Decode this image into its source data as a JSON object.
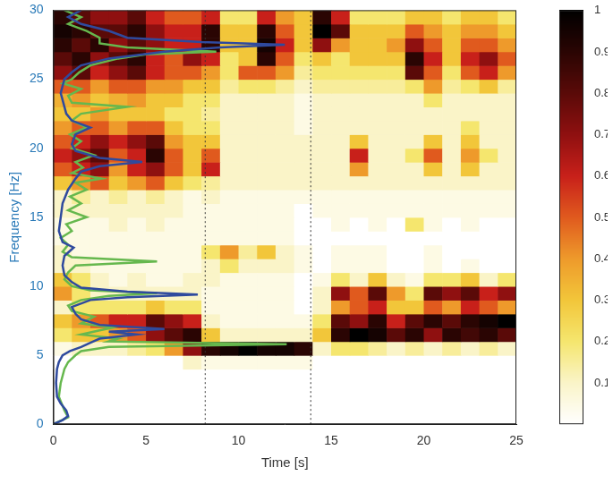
{
  "chart_data": {
    "type": "heatmap",
    "x_label": "Time [s]",
    "y_label": "Frequency [Hz]",
    "xlim": [
      0,
      25
    ],
    "xticks": [
      0,
      5,
      10,
      15,
      20,
      25
    ],
    "ylim": [
      0,
      30
    ],
    "yticks": [
      0,
      5,
      10,
      15,
      20,
      25,
      30
    ],
    "grid": false,
    "cells": {
      "x": [
        0,
        1,
        2,
        3,
        4,
        5,
        6,
        7,
        8,
        9,
        10,
        11,
        12,
        13,
        14,
        15,
        16,
        17,
        18,
        19,
        20,
        21,
        22,
        23,
        24,
        25
      ],
      "y": [
        4,
        5,
        6,
        7,
        8,
        9,
        10,
        11,
        12,
        13,
        14,
        15,
        16,
        17,
        18,
        19,
        20,
        21,
        22,
        23,
        24,
        25,
        26,
        27,
        28,
        29,
        30
      ],
      "values": [
        [
          0,
          0,
          0,
          0,
          0,
          0,
          0,
          0.1,
          0.05,
          0.05,
          0.05,
          0.05,
          0.05,
          0.05,
          0,
          0,
          0,
          0,
          0,
          0,
          0,
          0,
          0,
          0,
          0
        ],
        [
          0.05,
          0.1,
          0.1,
          0.1,
          0.15,
          0.2,
          0.4,
          0.7,
          0.9,
          0.95,
          1,
          0.95,
          0.95,
          0.9,
          0.1,
          0.2,
          0.2,
          0.15,
          0.1,
          0.15,
          0.1,
          0.15,
          0.1,
          0.15,
          0.1
        ],
        [
          0.2,
          0.3,
          0.3,
          0.4,
          0.5,
          0.7,
          0.8,
          0.9,
          0.3,
          0.1,
          0.1,
          0.1,
          0.1,
          0.1,
          0.3,
          0.9,
          1,
          0.95,
          0.8,
          0.9,
          0.7,
          0.9,
          0.85,
          0.9,
          0.8
        ],
        [
          0.3,
          0.4,
          0.5,
          0.6,
          0.6,
          0.8,
          0.7,
          0.6,
          0.1,
          0.05,
          0.05,
          0.05,
          0.05,
          0.05,
          0.2,
          0.8,
          0.7,
          0.9,
          0.6,
          0.8,
          0.9,
          0.8,
          0.9,
          0.95,
          1
        ],
        [
          0.1,
          0.2,
          0.2,
          0.2,
          0.2,
          0.3,
          0.2,
          0.2,
          0.05,
          0.05,
          0.05,
          0.05,
          0.05,
          0,
          0.1,
          0.4,
          0.5,
          0.6,
          0.3,
          0.3,
          0.5,
          0.4,
          0.6,
          0.5,
          0.4
        ],
        [
          0.4,
          0.2,
          0.1,
          0.1,
          0.1,
          0.1,
          0.1,
          0.1,
          0.05,
          0.05,
          0.05,
          0.05,
          0.05,
          0,
          0.1,
          0.7,
          0.5,
          0.8,
          0.4,
          0.2,
          0.8,
          0.7,
          0.8,
          0.6,
          0.7
        ],
        [
          0.3,
          0.2,
          0.1,
          0.05,
          0.1,
          0.05,
          0.05,
          0.1,
          0.1,
          0.05,
          0.05,
          0.05,
          0.05,
          0,
          0.05,
          0.2,
          0.1,
          0.3,
          0.1,
          0.05,
          0.2,
          0.2,
          0.3,
          0.1,
          0.2
        ],
        [
          0.1,
          0.1,
          0.05,
          0.05,
          0.05,
          0.05,
          0.05,
          0.05,
          0.1,
          0.2,
          0.1,
          0.1,
          0.1,
          0.05,
          0,
          0.05,
          0.05,
          0.05,
          0,
          0,
          0.05,
          0,
          0.05,
          0,
          0
        ],
        [
          0.1,
          0.05,
          0.05,
          0.05,
          0.05,
          0.05,
          0.05,
          0.05,
          0.2,
          0.4,
          0.15,
          0.3,
          0.1,
          0.05,
          0,
          0.05,
          0.05,
          0.05,
          0,
          0,
          0.05,
          0,
          0,
          0,
          0
        ],
        [
          0.05,
          0.05,
          0.05,
          0.05,
          0.05,
          0.05,
          0.05,
          0.05,
          0.05,
          0.05,
          0.05,
          0.05,
          0.05,
          0,
          0,
          0,
          0,
          0,
          0,
          0,
          0,
          0,
          0,
          0,
          0
        ],
        [
          0.05,
          0.05,
          0.05,
          0.1,
          0.05,
          0.1,
          0.05,
          0.05,
          0.05,
          0.05,
          0.05,
          0.05,
          0.05,
          0,
          0,
          0.05,
          0,
          0.05,
          0,
          0.2,
          0.05,
          0,
          0.05,
          0,
          0
        ],
        [
          0.1,
          0.1,
          0.1,
          0.1,
          0.1,
          0.1,
          0.1,
          0.05,
          0.05,
          0.05,
          0.05,
          0.05,
          0.05,
          0,
          0.05,
          0.05,
          0.05,
          0.05,
          0.05,
          0.05,
          0.05,
          0.05,
          0.05,
          0.05,
          0.05
        ],
        [
          0.1,
          0.15,
          0.1,
          0.15,
          0.1,
          0.15,
          0.1,
          0.05,
          0.1,
          0.05,
          0.05,
          0.05,
          0.05,
          0.05,
          0.05,
          0.05,
          0.05,
          0.05,
          0.05,
          0.05,
          0.05,
          0.05,
          0.05,
          0.05,
          0.05
        ],
        [
          0.3,
          0.4,
          0.5,
          0.3,
          0.4,
          0.5,
          0.3,
          0.2,
          0.15,
          0.1,
          0.1,
          0.1,
          0.1,
          0.1,
          0.1,
          0.1,
          0.1,
          0.1,
          0.1,
          0.1,
          0.1,
          0.1,
          0.1,
          0.1,
          0.1
        ],
        [
          0.5,
          0.6,
          0.7,
          0.4,
          0.6,
          0.7,
          0.5,
          0.3,
          0.6,
          0.1,
          0.1,
          0.1,
          0.1,
          0.1,
          0.1,
          0.1,
          0.4,
          0.1,
          0.1,
          0.1,
          0.3,
          0.1,
          0.3,
          0.1,
          0.1
        ],
        [
          0.6,
          0.7,
          0.8,
          0.5,
          0.6,
          0.9,
          0.5,
          0.3,
          0.5,
          0.1,
          0.1,
          0.1,
          0.1,
          0.1,
          0.1,
          0.1,
          0.6,
          0.1,
          0.1,
          0.2,
          0.5,
          0.1,
          0.4,
          0.2,
          0.1
        ],
        [
          0.5,
          0.6,
          0.7,
          0.6,
          0.7,
          0.8,
          0.4,
          0.3,
          0.3,
          0.1,
          0.1,
          0.1,
          0.1,
          0.1,
          0.1,
          0.1,
          0.3,
          0.1,
          0.1,
          0.1,
          0.3,
          0.1,
          0.3,
          0.1,
          0.1
        ],
        [
          0.4,
          0.5,
          0.5,
          0.4,
          0.5,
          0.5,
          0.3,
          0.2,
          0.2,
          0.1,
          0.1,
          0.1,
          0.1,
          0.05,
          0.1,
          0.1,
          0.1,
          0.1,
          0.1,
          0.1,
          0.1,
          0.1,
          0.2,
          0.1,
          0.1
        ],
        [
          0.3,
          0.3,
          0.4,
          0.3,
          0.3,
          0.3,
          0.2,
          0.2,
          0.15,
          0.1,
          0.1,
          0.1,
          0.1,
          0.05,
          0.1,
          0.1,
          0.1,
          0.1,
          0.1,
          0.1,
          0.1,
          0.1,
          0.1,
          0.1,
          0.1
        ],
        [
          0.35,
          0.4,
          0.3,
          0.35,
          0.4,
          0.3,
          0.3,
          0.2,
          0.2,
          0.1,
          0.1,
          0.1,
          0.1,
          0.05,
          0.1,
          0.1,
          0.1,
          0.1,
          0.1,
          0.1,
          0.2,
          0.1,
          0.1,
          0.1,
          0.1
        ],
        [
          0.5,
          0.5,
          0.4,
          0.5,
          0.5,
          0.4,
          0.4,
          0.3,
          0.3,
          0.15,
          0.2,
          0.2,
          0.15,
          0.1,
          0.15,
          0.15,
          0.15,
          0.15,
          0.15,
          0.2,
          0.4,
          0.15,
          0.2,
          0.3,
          0.15
        ],
        [
          0.7,
          0.8,
          0.6,
          0.7,
          0.8,
          0.6,
          0.5,
          0.5,
          0.4,
          0.2,
          0.5,
          0.5,
          0.4,
          0.15,
          0.2,
          0.2,
          0.2,
          0.2,
          0.2,
          0.8,
          0.5,
          0.2,
          0.5,
          0.6,
          0.4
        ],
        [
          0.8,
          0.9,
          0.7,
          0.8,
          0.9,
          0.6,
          0.5,
          0.7,
          0.6,
          0.2,
          0.3,
          0.9,
          0.5,
          0.2,
          0.3,
          0.2,
          0.3,
          0.3,
          0.3,
          0.9,
          0.6,
          0.3,
          0.6,
          0.7,
          0.5
        ],
        [
          0.9,
          0.8,
          0.9,
          0.7,
          0.8,
          0.7,
          0.6,
          0.6,
          0.9,
          0.3,
          0.3,
          0.95,
          0.6,
          0.3,
          0.7,
          0.4,
          0.3,
          0.3,
          0.4,
          0.7,
          0.5,
          0.3,
          0.5,
          0.5,
          0.4
        ],
        [
          0.95,
          0.9,
          0.8,
          0.8,
          0.9,
          0.7,
          0.6,
          0.6,
          0.9,
          0.3,
          0.3,
          0.9,
          0.5,
          0.3,
          1,
          0.8,
          0.3,
          0.3,
          0.3,
          0.5,
          0.4,
          0.3,
          0.4,
          0.4,
          0.3
        ],
        [
          0.9,
          0.8,
          0.7,
          0.7,
          0.8,
          0.6,
          0.5,
          0.5,
          0.6,
          0.2,
          0.2,
          0.6,
          0.4,
          0.3,
          0.9,
          0.6,
          0.2,
          0.2,
          0.2,
          0.3,
          0.3,
          0.2,
          0.3,
          0.3,
          0.2
        ]
      ]
    },
    "colorbar": {
      "range": [
        0,
        1
      ],
      "ticks": [
        0.1,
        0.2,
        0.3,
        0.4,
        0.5,
        0.6,
        0.7,
        0.8,
        0.9,
        1
      ]
    },
    "vlines": [
      8.2,
      13.9
    ],
    "series": [
      {
        "type": "line",
        "color": "#2f4a9e",
        "frequency": [
          0,
          0.3,
          0.6,
          1,
          1.5,
          2,
          3,
          4,
          4.5,
          5,
          5.3,
          5.6,
          5.9,
          6.2,
          6.5,
          6.7,
          6.9,
          7.2,
          7.6,
          8,
          8.5,
          9,
          9.2,
          9.4,
          9.6,
          9.9,
          10.3,
          10.8,
          11.5,
          12.2,
          12.8,
          13.2,
          14,
          15,
          16,
          17,
          17.8,
          18.3,
          18.7,
          19,
          19.3,
          19.8,
          20.3,
          21,
          21.5,
          22,
          22.5,
          23,
          24,
          25,
          25.5,
          26,
          26.5,
          27,
          27.3,
          27.5,
          27.7,
          28,
          28.5,
          29,
          29.5,
          30
        ],
        "values": [
          0,
          0.5,
          0.8,
          0.7,
          0.4,
          0.2,
          0.15,
          0.2,
          0.3,
          0.5,
          0.9,
          1.5,
          2,
          2.5,
          4.5,
          3,
          6,
          2.5,
          1.5,
          1.2,
          1,
          2,
          4,
          7.8,
          4,
          1.5,
          1,
          0.6,
          0.5,
          0.6,
          1.1,
          0.5,
          0.3,
          0.4,
          0.5,
          0.8,
          1.2,
          1.5,
          2.5,
          4.8,
          2.5,
          1.2,
          1,
          1.2,
          2,
          1,
          0.7,
          0.6,
          0.4,
          0.6,
          1,
          1.5,
          3,
          6,
          9,
          12.5,
          8,
          4,
          3,
          1.5,
          0.8,
          1.5
        ]
      },
      {
        "type": "line",
        "color": "#66b84e",
        "frequency": [
          0,
          0.5,
          1,
          2,
          3,
          4,
          4.5,
          5,
          5.3,
          5.6,
          5.8,
          6,
          6.2,
          6.5,
          6.8,
          7,
          7.3,
          7.8,
          8.2,
          8.6,
          9,
          9.3,
          9.5,
          9.7,
          10,
          10.5,
          11,
          11.5,
          11.8,
          12.1,
          12.5,
          13,
          13.5,
          14,
          14.5,
          15,
          15.5,
          16,
          16.5,
          17,
          17.5,
          17.8,
          18.2,
          18.6,
          19,
          19.5,
          20,
          20.5,
          21,
          21.5,
          22,
          22.5,
          23,
          23.3,
          23.8,
          24.3,
          24.7,
          25,
          25.5,
          26,
          26.5,
          26.8,
          27,
          27.3,
          27.6,
          28,
          28.5,
          29,
          29.5,
          30
        ],
        "values": [
          0,
          0.8,
          0.6,
          0.3,
          0.4,
          0.6,
          0.8,
          1.2,
          1.5,
          3,
          12.6,
          3,
          3.5,
          1.5,
          2.5,
          3.2,
          1.5,
          2.2,
          1,
          0.8,
          1.5,
          3,
          5.6,
          2,
          1,
          0.6,
          0.8,
          1.2,
          5.6,
          1,
          0.5,
          0.8,
          0.4,
          1,
          0.7,
          1.8,
          0.8,
          1.5,
          0.9,
          1.8,
          1.2,
          2.6,
          1,
          1.6,
          1.2,
          2.2,
          1,
          1.5,
          0.9,
          1.8,
          1,
          1.5,
          4,
          1,
          0.8,
          1.5,
          0.5,
          1,
          1.4,
          2,
          3.5,
          5,
          8.8,
          4,
          2.5,
          2.5,
          1.8,
          0.8,
          1.5,
          0.6
        ]
      }
    ]
  }
}
